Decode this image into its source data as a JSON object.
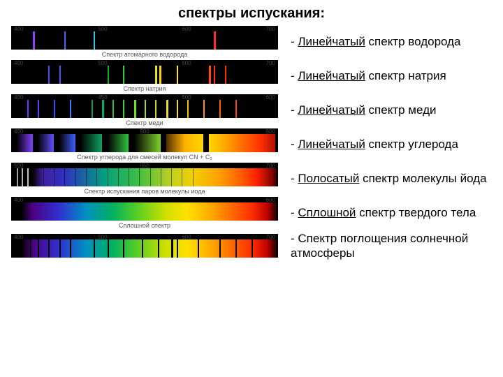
{
  "title": "спектры испускания:",
  "spectra": [
    {
      "label_prefix": "- ",
      "label_underlined": "Линейчатый",
      "label_rest": " спектр водорода",
      "caption": "Спектр атомарного водорода",
      "background": "#000000",
      "scale": [
        "400",
        "500",
        "600",
        "700"
      ],
      "lines": [
        {
          "pos": 8,
          "width": 3,
          "color": "#8a3fff"
        },
        {
          "pos": 20,
          "width": 2,
          "color": "#4b60ff"
        },
        {
          "pos": 31,
          "width": 2,
          "color": "#2fc8e0"
        },
        {
          "pos": 76,
          "width": 3,
          "color": "#ff2a2a"
        }
      ]
    },
    {
      "label_prefix": "- ",
      "label_underlined": "Линейчатый",
      "label_rest": " спектр натрия",
      "caption": "Спектр натрия",
      "background": "#000000",
      "scale": [
        "400",
        "500",
        "600",
        "700"
      ],
      "lines": [
        {
          "pos": 14,
          "width": 2,
          "color": "#4747ff"
        },
        {
          "pos": 18,
          "width": 2,
          "color": "#5050ff"
        },
        {
          "pos": 36,
          "width": 2,
          "color": "#1ab01a"
        },
        {
          "pos": 42,
          "width": 2,
          "color": "#2ed02e"
        },
        {
          "pos": 54,
          "width": 3,
          "color": "#e6e620"
        },
        {
          "pos": 55.5,
          "width": 3,
          "color": "#ffd400"
        },
        {
          "pos": 62,
          "width": 2,
          "color": "#ffea00"
        },
        {
          "pos": 74,
          "width": 3,
          "color": "#ff4b1e"
        },
        {
          "pos": 76,
          "width": 2,
          "color": "#ff3010"
        },
        {
          "pos": 80,
          "width": 2,
          "color": "#ff2a00"
        }
      ]
    },
    {
      "label_prefix": "- ",
      "label_underlined": "Линейчатый",
      "label_rest": " спектр меди",
      "caption": "Спектр меди",
      "background": "#000000",
      "scale": [
        "400",
        "450",
        "500",
        "600"
      ],
      "lines": [
        {
          "pos": 6,
          "width": 2,
          "color": "#7030ff"
        },
        {
          "pos": 10,
          "width": 2,
          "color": "#6040ff"
        },
        {
          "pos": 16,
          "width": 2,
          "color": "#3050ff"
        },
        {
          "pos": 22,
          "width": 2,
          "color": "#3080ff"
        },
        {
          "pos": 30,
          "width": 2,
          "color": "#00a060"
        },
        {
          "pos": 34,
          "width": 3,
          "color": "#00b060"
        },
        {
          "pos": 38,
          "width": 2,
          "color": "#20c040"
        },
        {
          "pos": 42,
          "width": 2,
          "color": "#40d030"
        },
        {
          "pos": 46,
          "width": 3,
          "color": "#70e020"
        },
        {
          "pos": 50,
          "width": 2,
          "color": "#a0e020"
        },
        {
          "pos": 54,
          "width": 2,
          "color": "#d0e020"
        },
        {
          "pos": 58,
          "width": 3,
          "color": "#e8e020"
        },
        {
          "pos": 62,
          "width": 2,
          "color": "#ffe000"
        },
        {
          "pos": 66,
          "width": 2,
          "color": "#ffc000"
        },
        {
          "pos": 72,
          "width": 2,
          "color": "#ff9000"
        },
        {
          "pos": 78,
          "width": 2,
          "color": "#ff6000"
        },
        {
          "pos": 84,
          "width": 2,
          "color": "#ff4000"
        }
      ]
    },
    {
      "label_prefix": "- ",
      "label_underlined": "Линейчатый",
      "label_rest": " спектр углерода",
      "caption": "Спектр углерода для смесей молекул CN + C₂",
      "background": "#000000",
      "scale": [
        "400",
        "500",
        "600"
      ],
      "bands": [
        {
          "from": 2,
          "to": 8,
          "gradient": "linear-gradient(90deg,#000,#8040ff)"
        },
        {
          "from": 10,
          "to": 16,
          "gradient": "linear-gradient(90deg,#000,#6050ff)"
        },
        {
          "from": 18,
          "to": 24,
          "gradient": "linear-gradient(90deg,#000,#4060ff)"
        },
        {
          "from": 26,
          "to": 34,
          "gradient": "linear-gradient(90deg,#000,#10a060)"
        },
        {
          "from": 36,
          "to": 44,
          "gradient": "linear-gradient(90deg,#000,#30c040)"
        },
        {
          "from": 46,
          "to": 56,
          "gradient": "linear-gradient(90deg,#000,#80d030)"
        },
        {
          "from": 58,
          "to": 72,
          "gradient": "linear-gradient(90deg,#503000,#ffb000,#ffd800)"
        },
        {
          "from": 74,
          "to": 88,
          "gradient": "linear-gradient(90deg,#ffd800,#ffa000,#ff6000)"
        },
        {
          "from": 88,
          "to": 99,
          "gradient": "linear-gradient(90deg,#ff6000,#ff3000,#b01000)"
        }
      ]
    },
    {
      "label_prefix": "- ",
      "label_underlined": "Полосатый",
      "label_rest": " спектр молекулы йода",
      "caption": "Спектр испускания паров молекулы иода",
      "background": "linear-gradient(90deg,#000 0%,#000 8%,#4020a0 12%,#3030c0 20%,#00a080 35%,#40c040 48%,#c0d020 60%,#f0d000 68%,#ffa000 78%,#ff6000 86%,#ff2000 92%,#800000 98%,#000 100%)",
      "scale": [
        "500",
        "650",
        "700"
      ],
      "lines": [
        {
          "pos": 2,
          "width": 2,
          "color": "#a0a0a0"
        },
        {
          "pos": 4,
          "width": 2,
          "color": "#b0b0b0"
        },
        {
          "pos": 6,
          "width": 2,
          "color": "#c0c0c0"
        },
        {
          "pos": 12,
          "width": 1,
          "color": "rgba(0,0,0,0.5)"
        },
        {
          "pos": 16,
          "width": 1,
          "color": "rgba(0,0,0,0.5)"
        },
        {
          "pos": 20,
          "width": 1,
          "color": "rgba(0,0,0,0.5)"
        },
        {
          "pos": 24,
          "width": 1,
          "color": "rgba(0,0,0,0.5)"
        },
        {
          "pos": 28,
          "width": 1,
          "color": "rgba(0,0,0,0.5)"
        },
        {
          "pos": 32,
          "width": 1,
          "color": "rgba(0,0,0,0.5)"
        },
        {
          "pos": 36,
          "width": 1,
          "color": "rgba(0,0,0,0.5)"
        },
        {
          "pos": 40,
          "width": 1,
          "color": "rgba(0,0,0,0.5)"
        },
        {
          "pos": 44,
          "width": 1,
          "color": "rgba(0,0,0,0.5)"
        },
        {
          "pos": 48,
          "width": 1,
          "color": "rgba(0,0,0,0.5)"
        },
        {
          "pos": 52,
          "width": 1,
          "color": "rgba(0,0,0,0.5)"
        },
        {
          "pos": 56,
          "width": 1,
          "color": "rgba(0,0,0,0.5)"
        },
        {
          "pos": 60,
          "width": 1,
          "color": "rgba(0,0,0,0.5)"
        },
        {
          "pos": 64,
          "width": 1,
          "color": "rgba(0,0,0,0.5)"
        },
        {
          "pos": 68,
          "width": 1,
          "color": "rgba(0,0,0,0.5)"
        }
      ]
    },
    {
      "label_prefix": "- ",
      "label_underlined": "Сплошной",
      "label_rest": " спектр твердого тела",
      "caption": "Сплошной спектр",
      "background": "linear-gradient(90deg,#000 0%,#000 4%,#4b0082 8%,#3030d0 18%,#0090c0 28%,#00b060 38%,#60d020 48%,#d0e000 58%,#ffe000 66%,#ffb000 74%,#ff7000 82%,#ff3000 90%,#c00000 96%,#000 100%)",
      "scale": [
        "400",
        "600"
      ],
      "lines": []
    },
    {
      "label_prefix": "- ",
      "label_underlined": "",
      "label_rest": "Спектр поглощения солнечной атмосферы",
      "caption": "",
      "background": "linear-gradient(90deg,#000 0%,#000 4%,#4b0082 8%,#3030d0 18%,#0090c0 28%,#00b060 38%,#60d020 48%,#d0e000 58%,#ffe000 66%,#ffb000 74%,#ff7000 82%,#ff3000 90%,#c00000 96%,#000 100%)",
      "scale": [
        "400",
        "500",
        "600",
        "700"
      ],
      "lines": [
        {
          "pos": 7,
          "width": 2,
          "color": "#000"
        },
        {
          "pos": 10,
          "width": 2,
          "color": "#000"
        },
        {
          "pos": 14,
          "width": 2,
          "color": "#000"
        },
        {
          "pos": 18,
          "width": 2,
          "color": "#000"
        },
        {
          "pos": 22,
          "width": 2,
          "color": "#000"
        },
        {
          "pos": 31,
          "width": 2,
          "color": "#000"
        },
        {
          "pos": 36,
          "width": 2,
          "color": "#000"
        },
        {
          "pos": 42,
          "width": 2,
          "color": "#000"
        },
        {
          "pos": 49,
          "width": 2,
          "color": "#000"
        },
        {
          "pos": 55,
          "width": 2,
          "color": "#000"
        },
        {
          "pos": 60,
          "width": 3,
          "color": "#000"
        },
        {
          "pos": 62,
          "width": 2,
          "color": "#000"
        },
        {
          "pos": 70,
          "width": 2,
          "color": "#000"
        },
        {
          "pos": 78,
          "width": 2,
          "color": "#000"
        },
        {
          "pos": 84,
          "width": 2,
          "color": "#000"
        },
        {
          "pos": 90,
          "width": 2,
          "color": "#000"
        }
      ]
    }
  ]
}
